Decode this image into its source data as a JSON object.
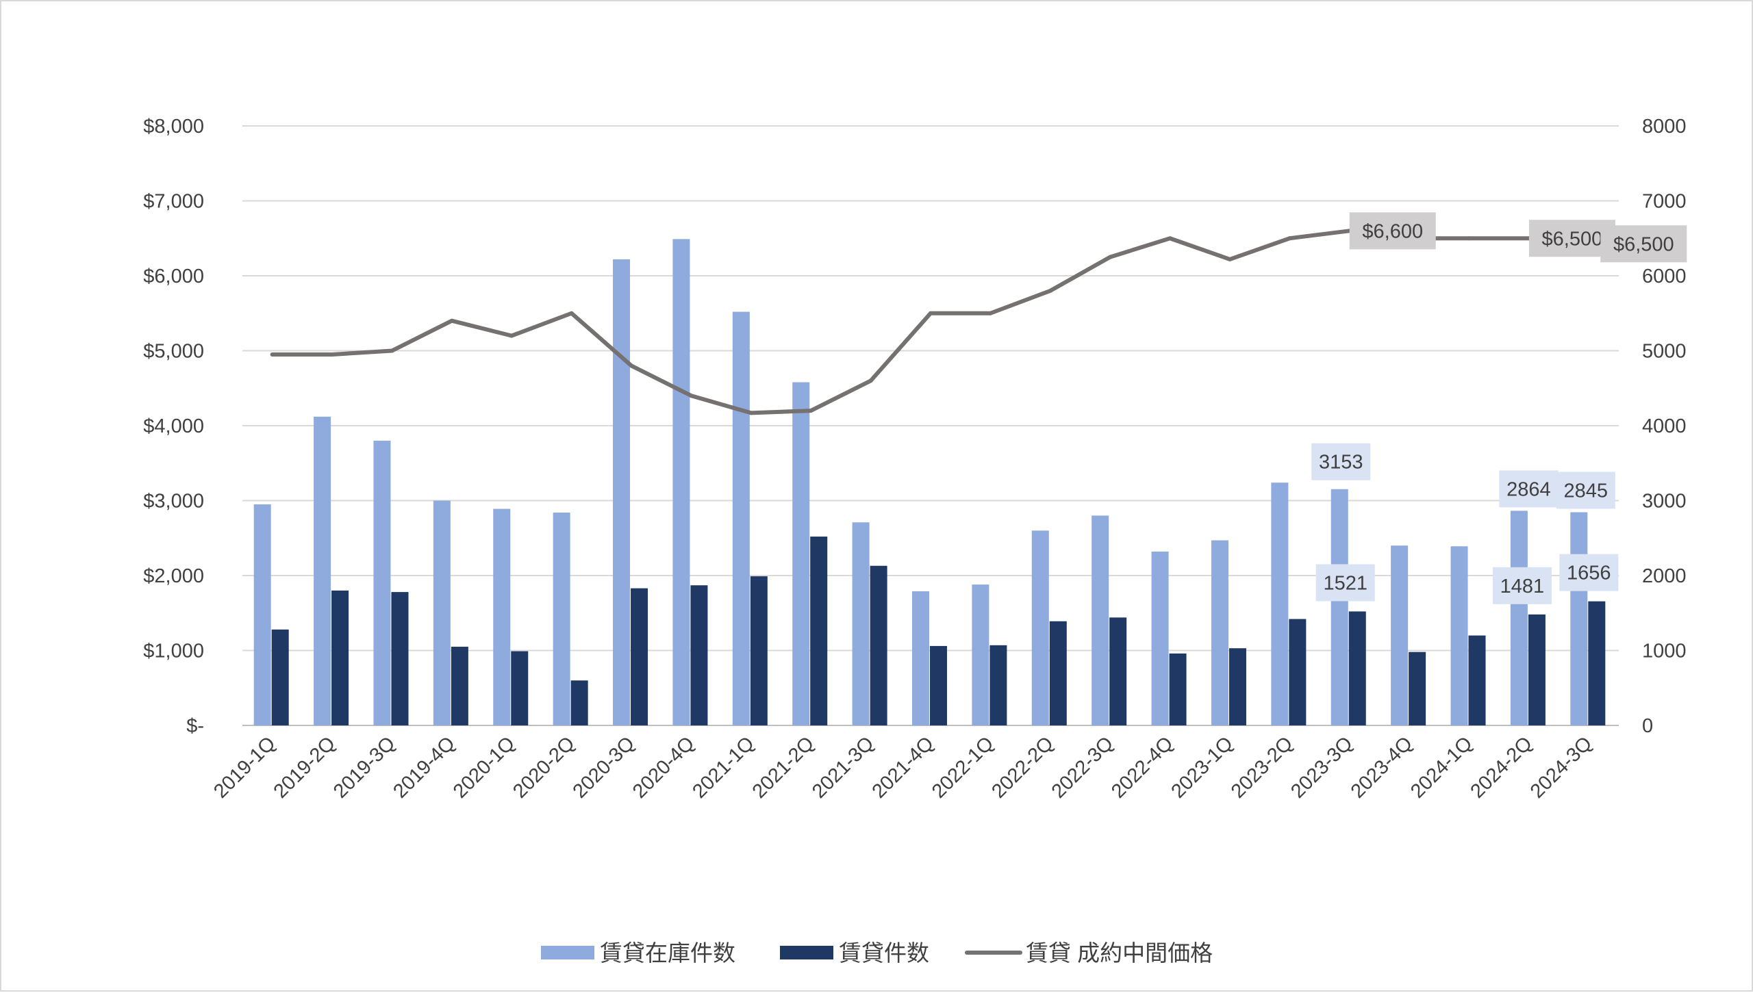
{
  "chart_data": {
    "type": "bar",
    "title": "",
    "xlabel": "",
    "categories": [
      "2019-1Q",
      "2019-2Q",
      "2019-3Q",
      "2019-4Q",
      "2020-1Q",
      "2020-2Q",
      "2020-3Q",
      "2020-4Q",
      "2021-1Q",
      "2021-2Q",
      "2021-3Q",
      "2021-4Q",
      "2022-1Q",
      "2022-2Q",
      "2022-3Q",
      "2022-4Q",
      "2023-1Q",
      "2023-2Q",
      "2023-3Q",
      "2023-4Q",
      "2024-1Q",
      "2024-2Q",
      "2024-3Q"
    ],
    "left_axis": {
      "ylim": [
        0,
        8000
      ],
      "ticks": [
        0,
        1000,
        2000,
        3000,
        4000,
        5000,
        6000,
        7000,
        8000
      ],
      "tick_labels": [
        "$-",
        "$1,000",
        "$2,000",
        "$3,000",
        "$4,000",
        "$5,000",
        "$6,000",
        "$7,000",
        "$8,000"
      ]
    },
    "right_axis": {
      "ylim": [
        0,
        8000
      ],
      "ticks": [
        0,
        1000,
        2000,
        3000,
        4000,
        5000,
        6000,
        7000,
        8000
      ],
      "tick_labels": [
        "0",
        "1000",
        "2000",
        "3000",
        "4000",
        "5000",
        "6000",
        "7000",
        "8000"
      ]
    },
    "grid": true,
    "legend_position": "bottom",
    "series": [
      {
        "name": "賃貸在庫件数",
        "type": "bar",
        "axis": "right",
        "color": "#8faadc",
        "values": [
          2950,
          4120,
          3800,
          3000,
          2890,
          2840,
          6220,
          6490,
          5520,
          4580,
          2710,
          1790,
          1880,
          2600,
          2800,
          2320,
          2470,
          3240,
          3153,
          2400,
          2390,
          2864,
          2845
        ],
        "data_labels": [
          {
            "category": "2023-3Q",
            "text": "3153"
          },
          {
            "category": "2024-2Q",
            "text": "2864"
          },
          {
            "category": "2024-3Q",
            "text": "2845"
          }
        ]
      },
      {
        "name": "賃貸件数",
        "type": "bar",
        "axis": "right",
        "color": "#203864",
        "values": [
          1280,
          1800,
          1780,
          1050,
          990,
          600,
          1830,
          1870,
          1990,
          2520,
          2130,
          1060,
          1070,
          1390,
          1440,
          960,
          1030,
          1420,
          1521,
          980,
          1200,
          1481,
          1656
        ],
        "data_labels": [
          {
            "category": "2023-3Q",
            "text": "1521"
          },
          {
            "category": "2024-2Q",
            "text": "1481"
          },
          {
            "category": "2024-3Q",
            "text": "1656"
          }
        ]
      },
      {
        "name": "賃貸 成約中間価格",
        "type": "line",
        "axis": "left",
        "color": "#767171",
        "values": [
          4950,
          4950,
          5000,
          5400,
          5200,
          5500,
          4800,
          4400,
          4170,
          4200,
          4600,
          5500,
          5500,
          5800,
          6250,
          6500,
          6220,
          6500,
          6600,
          6500,
          6500,
          6500,
          6500
        ],
        "data_labels": [
          {
            "category": "2023-3Q",
            "text": "$6,600"
          },
          {
            "category": "2024-2Q",
            "text": "$6,500"
          },
          {
            "category": "2024-3Q",
            "text": "$6,500"
          }
        ]
      }
    ]
  }
}
